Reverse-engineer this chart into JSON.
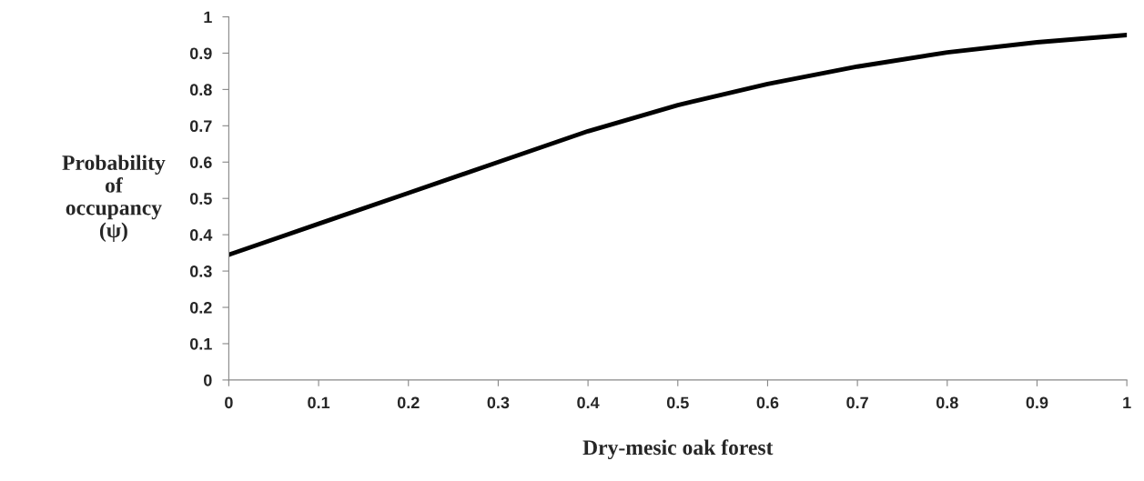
{
  "chart_data": {
    "type": "line",
    "xlabel": "Dry-mesic oak forest",
    "ylabel": "Probability\nof\noccupancy\n(ψ)",
    "x": [
      0,
      0.1,
      0.2,
      0.3,
      0.4,
      0.5,
      0.6,
      0.7,
      0.8,
      0.9,
      1
    ],
    "series": [
      {
        "color": "#000000",
        "values": [
          0.345,
          0.43,
          0.515,
          0.6,
          0.685,
          0.757,
          0.815,
          0.863,
          0.902,
          0.93,
          0.95
        ]
      }
    ],
    "xlim": [
      0,
      1
    ],
    "ylim": [
      0,
      1
    ],
    "xticks": [
      0,
      0.1,
      0.2,
      0.3,
      0.4,
      0.5,
      0.6,
      0.7,
      0.8,
      0.9,
      1
    ],
    "yticks": [
      0,
      0.1,
      0.2,
      0.3,
      0.4,
      0.5,
      0.6,
      0.7,
      0.8,
      0.9,
      1
    ],
    "marker": "none",
    "line_style": "solid"
  }
}
